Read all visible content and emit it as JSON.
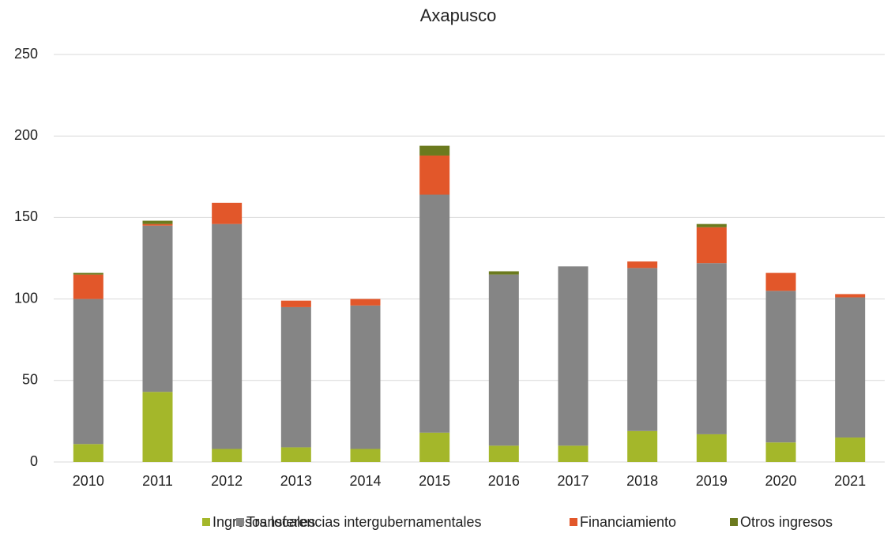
{
  "chart_data": {
    "type": "stacked_bar",
    "title": "Axapusco",
    "categories": [
      "2010",
      "2011",
      "2012",
      "2013",
      "2014",
      "2015",
      "2016",
      "2017",
      "2018",
      "2019",
      "2020",
      "2021"
    ],
    "series": [
      {
        "name": "Ingresos locales",
        "color": "#a4b72a",
        "values": [
          11,
          43,
          8,
          9,
          8,
          18,
          10,
          10,
          19,
          17,
          12,
          15
        ]
      },
      {
        "name": "Transferencias intergubernamentales",
        "color": "#858585",
        "values": [
          89,
          102,
          138,
          86,
          88,
          146,
          105,
          110,
          100,
          105,
          93,
          86
        ]
      },
      {
        "name": "Financiamiento",
        "color": "#e2572a",
        "values": [
          15,
          1,
          13,
          4,
          4,
          24,
          0,
          0,
          4,
          22,
          11,
          2
        ]
      },
      {
        "name": "Otros ingresos",
        "color": "#6b7a1e",
        "values": [
          1,
          2,
          0,
          0,
          0,
          6,
          2,
          0,
          0,
          2,
          0,
          0
        ]
      }
    ],
    "ylim": [
      0,
      250
    ],
    "yticks": [
      0,
      50,
      100,
      150,
      200,
      250
    ],
    "grid": true,
    "legend": "bottom"
  }
}
